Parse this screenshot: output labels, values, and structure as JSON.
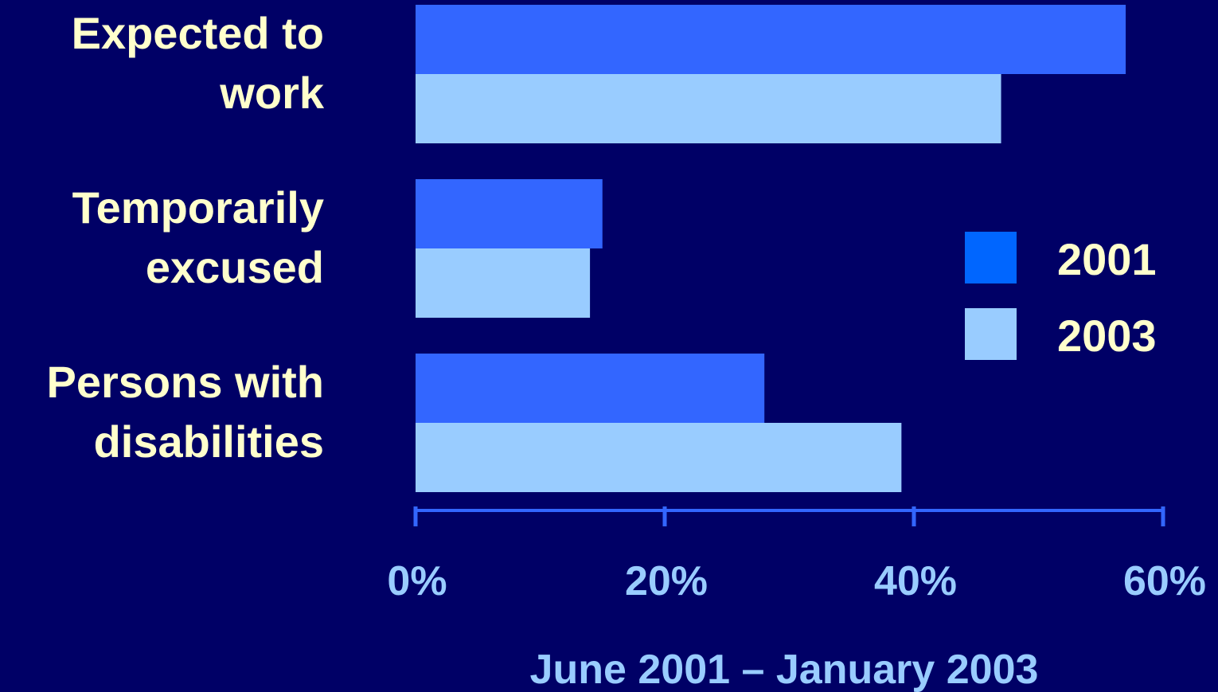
{
  "chart_data": {
    "type": "bar",
    "orientation": "horizontal",
    "categories": [
      [
        "Expected to",
        "work"
      ],
      [
        "Temporarily",
        "excused"
      ],
      [
        "Persons with",
        "disabilities"
      ]
    ],
    "series": [
      {
        "name": "2001",
        "values": [
          57,
          15,
          28
        ],
        "color": "#3366FF",
        "legend_color": "#0066FF"
      },
      {
        "name": "2003",
        "values": [
          47,
          14,
          39
        ],
        "color": "#99CCFF",
        "legend_color": "#99CCFF"
      }
    ],
    "x_ticks": [
      "0%",
      "20%",
      "40%",
      "60%"
    ],
    "x_tick_values": [
      0,
      20,
      40,
      60
    ],
    "xlim": [
      0,
      60
    ],
    "xlabel": "June 2001 – January 2003",
    "title": "",
    "legend_position": "right",
    "grid": false,
    "colors": {
      "background": "#000066",
      "axis": "#3366FF",
      "category_text": "#FFFFCC",
      "tick_text": "#99CCFF"
    }
  }
}
